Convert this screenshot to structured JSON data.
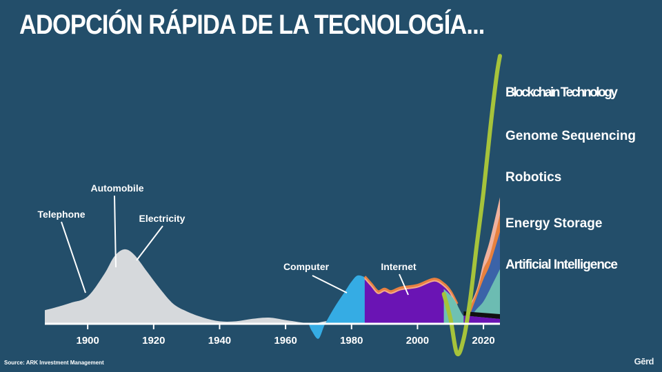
{
  "title": "ADOPCIÓN RÁPIDA DE LA TECNOLOGÍA...",
  "source": "Source: ARK Investment Management",
  "logo": "Gērd",
  "colors": {
    "background": "#234e6a",
    "telephone_automobile_electricity": "#d6d9dc",
    "computer": "#35ace4",
    "internet": "#6a14b4",
    "internet_edge": "#f2a98a",
    "internet_top": "#e88040",
    "blockchain": "#a6c33b",
    "genome": "#f0b29e",
    "robotics": "#e8803e",
    "energy_storage": "#3b63a8",
    "artificial_intelligence": "#6fc1b2"
  },
  "chart_data": {
    "type": "area",
    "title": "ADOPCIÓN RÁPIDA DE LA TECNOLOGÍA...",
    "xlabel": "",
    "ylabel": "",
    "xlim": [
      1887,
      2025
    ],
    "x_ticks": [
      1900,
      1920,
      1940,
      1960,
      1980,
      2000,
      2020
    ],
    "x_tick_labels": [
      "1900",
      "1920",
      "1940",
      "1960",
      "1980",
      "2000",
      "2020"
    ],
    "grid": false,
    "legend": "right",
    "annotations": [
      {
        "text": "Telephone",
        "x": 1898.5
      },
      {
        "text": "Automobile",
        "x": 1908.5
      },
      {
        "text": "Electricity",
        "x": 1915
      },
      {
        "text": "Computer",
        "x": 1978
      },
      {
        "text": "Internet",
        "x": 1997.5
      }
    ],
    "legend_entries": [
      "Blockchain Technology",
      "Genome Sequencing",
      "Robotics",
      "Energy Storage",
      "Artificial Intelligence"
    ],
    "series": [
      {
        "name": "Telephone / Automobile / Electricity",
        "x": [
          1887,
          1890,
          1895,
          1900,
          1905,
          1908,
          1911,
          1914,
          1918,
          1922,
          1926,
          1930,
          1935,
          1940,
          1945,
          1950,
          1955,
          1960,
          1965,
          1968,
          1972,
          1978,
          1985,
          1992,
          1995
        ],
        "y": [
          5.5,
          6.5,
          8.5,
          11,
          20,
          27,
          30,
          28,
          21,
          14,
          8,
          5,
          2.5,
          1,
          1,
          2,
          2.5,
          1.5,
          0.5,
          0,
          1,
          2,
          1.5,
          0.5,
          0
        ]
      },
      {
        "name": "Computer",
        "x": [
          1967,
          1968,
          1970,
          1972,
          1975,
          1978,
          1980,
          1982,
          1985,
          1987,
          1990,
          1993,
          1996,
          2000
        ],
        "y": [
          0,
          -3,
          -6,
          0,
          7,
          13,
          17,
          19.5,
          18,
          15,
          11,
          7,
          3,
          0
        ]
      },
      {
        "name": "Internet",
        "x": [
          1984,
          1986,
          1988,
          1990,
          1992,
          1995,
          2000,
          2005,
          2008,
          2010,
          2012
        ],
        "y": [
          19,
          16,
          13,
          14,
          13,
          14.5,
          15.5,
          18,
          16,
          13,
          8
        ]
      },
      {
        "name": "Blockchain Technology",
        "x": [
          2008,
          2010,
          2012,
          2014,
          2016,
          2018,
          2020,
          2022,
          2024,
          2025
        ],
        "y": [
          12,
          2,
          -12,
          -6,
          10,
          32,
          53,
          78,
          100,
          108
        ]
      },
      {
        "name": "Genome Sequencing",
        "x": [
          2015,
          2018,
          2020,
          2022,
          2025
        ],
        "y": [
          5,
          14,
          25,
          34,
          51
        ]
      },
      {
        "name": "Robotics",
        "x": [
          2015,
          2018,
          2020,
          2022,
          2025
        ],
        "y": [
          4,
          13,
          22,
          28,
          44
        ]
      },
      {
        "name": "Energy Storage",
        "x": [
          2016,
          2018,
          2020,
          2022,
          2025
        ],
        "y": [
          4,
          11,
          18,
          24,
          37
        ]
      },
      {
        "name": "Artificial Intelligence",
        "x": [
          2008,
          2011,
          2014,
          2016,
          2018,
          2020,
          2022,
          2025
        ],
        "y": [
          14,
          10,
          3,
          3,
          6,
          9,
          14,
          22
        ]
      }
    ]
  }
}
